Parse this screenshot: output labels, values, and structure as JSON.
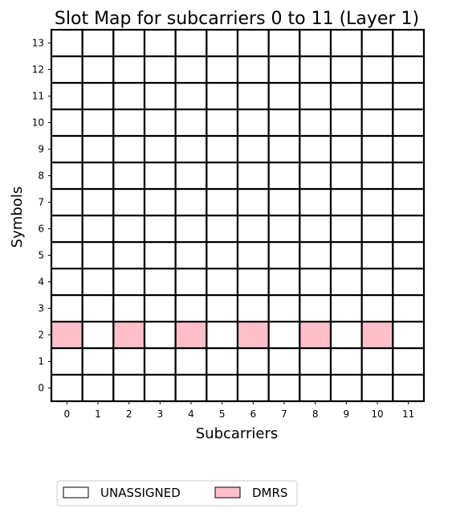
{
  "chart_data": {
    "type": "heatmap",
    "title": "Slot Map for subcarriers 0 to 11 (Layer 1)",
    "xlabel": "Subcarriers",
    "ylabel": "Symbols",
    "x_ticks": [
      "0",
      "1",
      "2",
      "3",
      "4",
      "5",
      "6",
      "7",
      "8",
      "9",
      "10",
      "11"
    ],
    "y_ticks": [
      "0",
      "1",
      "2",
      "3",
      "4",
      "5",
      "6",
      "7",
      "8",
      "9",
      "10",
      "11",
      "12",
      "13"
    ],
    "xlim": [
      -0.5,
      11.5
    ],
    "ylim": [
      -0.5,
      13.5
    ],
    "grid": false,
    "legend_placement": "bottom-left, below plot",
    "categories": [
      {
        "name": "UNASSIGNED",
        "color": "#ffffff"
      },
      {
        "name": "DMRS",
        "color": "#ffc0cb"
      }
    ],
    "default_category": "UNASSIGNED",
    "cells": [
      {
        "subcarrier": 0,
        "symbol": 2,
        "category": "DMRS"
      },
      {
        "subcarrier": 2,
        "symbol": 2,
        "category": "DMRS"
      },
      {
        "subcarrier": 4,
        "symbol": 2,
        "category": "DMRS"
      },
      {
        "subcarrier": 6,
        "symbol": 2,
        "category": "DMRS"
      },
      {
        "subcarrier": 8,
        "symbol": 2,
        "category": "DMRS"
      },
      {
        "subcarrier": 10,
        "symbol": 2,
        "category": "DMRS"
      }
    ]
  }
}
